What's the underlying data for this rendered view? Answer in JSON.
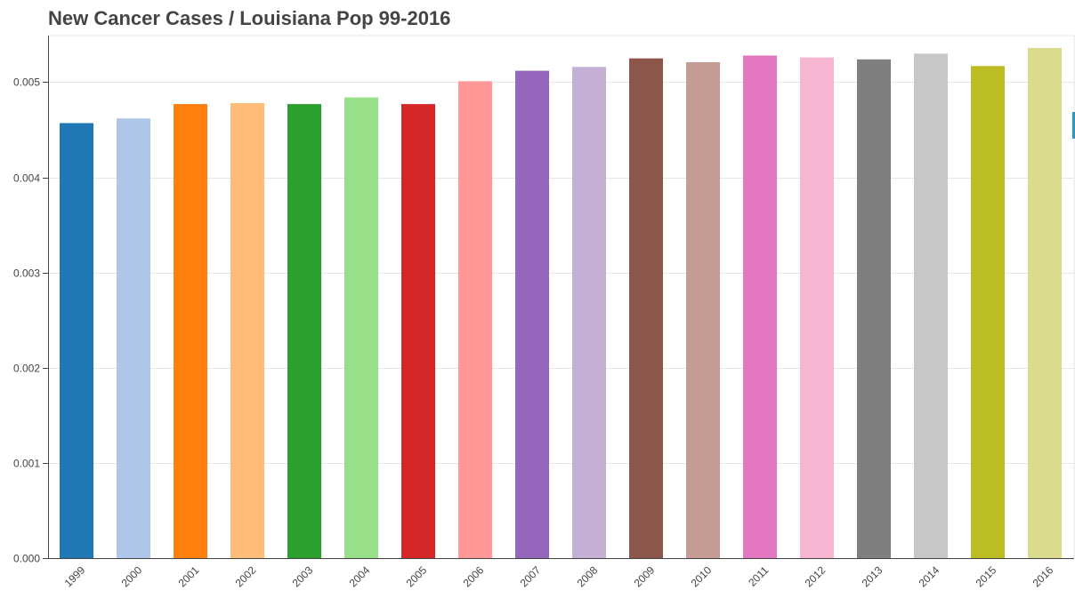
{
  "chart_data": {
    "type": "bar",
    "title": "New Cancer Cases / Louisiana Pop 99-2016",
    "xlabel": "",
    "ylabel": "",
    "categories": [
      "1999",
      "2000",
      "2001",
      "2002",
      "2003",
      "2004",
      "2005",
      "2006",
      "2007",
      "2008",
      "2009",
      "2010",
      "2011",
      "2012",
      "2013",
      "2014",
      "2015",
      "2016"
    ],
    "values": [
      0.00457,
      0.00462,
      0.00477,
      0.00478,
      0.00477,
      0.00484,
      0.00477,
      0.00501,
      0.00512,
      0.00516,
      0.00525,
      0.00521,
      0.00528,
      0.00526,
      0.00524,
      0.0053,
      0.00517,
      0.00536
    ],
    "colors": [
      "#1f77b4",
      "#aec7e8",
      "#ff7f0e",
      "#ffbb78",
      "#2ca02c",
      "#98df8a",
      "#d62728",
      "#ff9896",
      "#9467bd",
      "#c5b0d5",
      "#8c564b",
      "#c49c94",
      "#e377c2",
      "#f7b6d2",
      "#7f7f7f",
      "#c7c7c7",
      "#bcbd22",
      "#dbdb8d"
    ],
    "ylim": [
      0,
      0.00549
    ],
    "yticks": [
      "0.000",
      "0.001",
      "0.002",
      "0.003",
      "0.004",
      "0.005"
    ],
    "ytick_values": [
      0,
      0.001,
      0.002,
      0.003,
      0.004,
      0.005
    ],
    "grid": "horizontal",
    "legend": "none"
  }
}
